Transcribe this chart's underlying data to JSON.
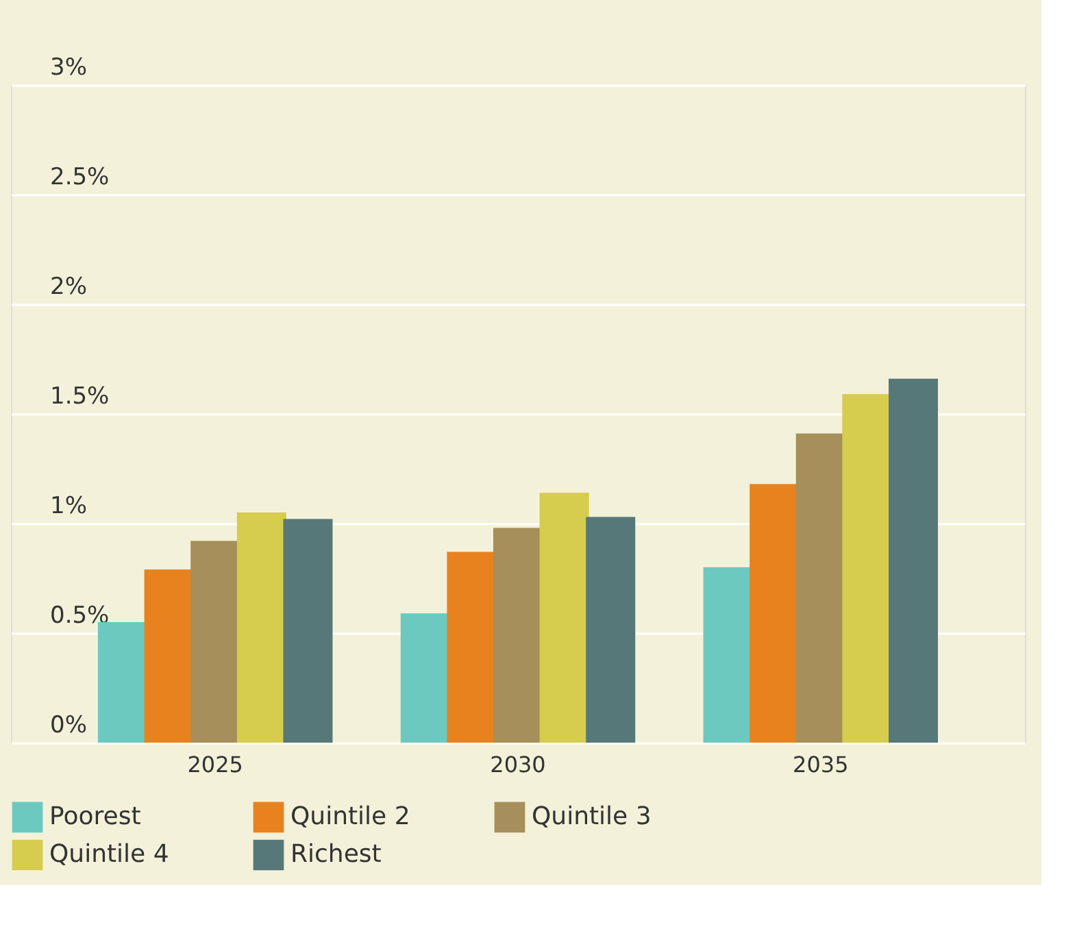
{
  "chart_data": {
    "type": "bar",
    "categories": [
      "2025",
      "2030",
      "2035"
    ],
    "series": [
      {
        "name": "Poorest",
        "color": "#6cc9c0",
        "values": [
          0.55,
          0.59,
          0.8
        ]
      },
      {
        "name": "Quintile 2",
        "color": "#e8821e",
        "values": [
          0.79,
          0.87,
          1.18
        ]
      },
      {
        "name": "Quintile 3",
        "color": "#a68f5a",
        "values": [
          0.92,
          0.98,
          1.41
        ]
      },
      {
        "name": "Quintile 4",
        "color": "#d6cc4e",
        "values": [
          1.05,
          1.14,
          1.59
        ]
      },
      {
        "name": "Richest",
        "color": "#567878",
        "values": [
          1.02,
          1.03,
          1.66
        ]
      }
    ],
    "ylim": [
      0,
      3
    ],
    "yticks": [
      {
        "value": 0,
        "label": "0%"
      },
      {
        "value": 0.5,
        "label": "0.5%"
      },
      {
        "value": 1,
        "label": "1%"
      },
      {
        "value": 1.5,
        "label": "1.5%"
      },
      {
        "value": 2,
        "label": "2%"
      },
      {
        "value": 2.5,
        "label": "2.5%"
      },
      {
        "value": 3,
        "label": "3%"
      }
    ],
    "grid": "y",
    "legend": "bottom"
  }
}
